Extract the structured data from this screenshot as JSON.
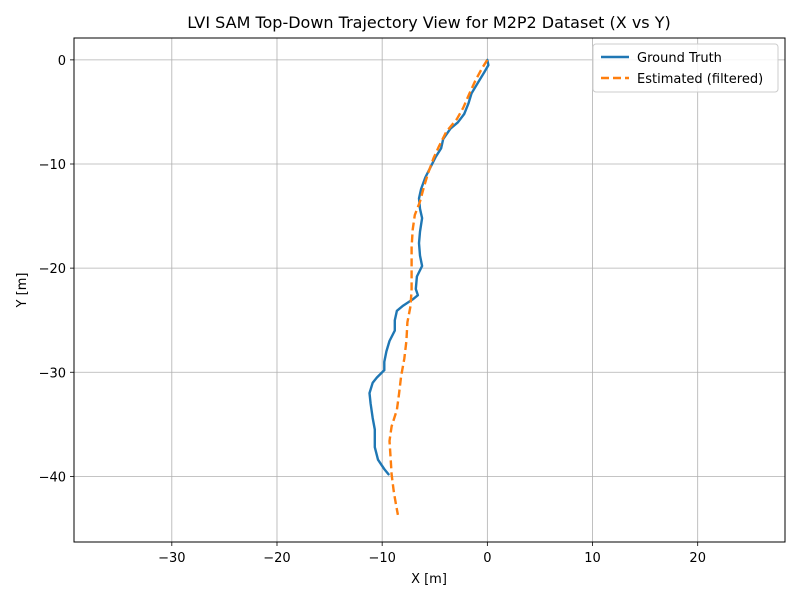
{
  "chart_data": {
    "type": "line",
    "title": "LVI SAM Top-Down Trajectory View for M2P2 Dataset (X vs Y)",
    "xlabel": "X [m]",
    "ylabel": "Y [m]",
    "xlim": [
      -39.3,
      28.3
    ],
    "ylim": [
      -46.3,
      2.1
    ],
    "xticks": [
      -30,
      -20,
      -10,
      0,
      10,
      20
    ],
    "yticks": [
      0,
      -10,
      -20,
      -30,
      -40
    ],
    "grid": true,
    "legend_position": "top-right",
    "series": [
      {
        "name": "Ground Truth",
        "color": "#1f77b4",
        "style": "solid",
        "points": [
          [
            0.0,
            0.0
          ],
          [
            0.1,
            -0.5
          ],
          [
            -0.3,
            -1.2
          ],
          [
            -0.9,
            -2.2
          ],
          [
            -1.5,
            -3.2
          ],
          [
            -1.8,
            -4.2
          ],
          [
            -2.2,
            -5.2
          ],
          [
            -2.8,
            -6.0
          ],
          [
            -3.5,
            -6.6
          ],
          [
            -4.2,
            -7.6
          ],
          [
            -4.4,
            -8.5
          ],
          [
            -4.9,
            -9.3
          ],
          [
            -5.5,
            -10.5
          ],
          [
            -5.9,
            -11.3
          ],
          [
            -6.3,
            -12.4
          ],
          [
            -6.5,
            -13.3
          ],
          [
            -6.4,
            -14.3
          ],
          [
            -6.2,
            -15.2
          ],
          [
            -6.4,
            -16.5
          ],
          [
            -6.5,
            -17.6
          ],
          [
            -6.4,
            -18.8
          ],
          [
            -6.2,
            -19.8
          ],
          [
            -6.7,
            -20.8
          ],
          [
            -6.8,
            -22.0
          ],
          [
            -6.6,
            -22.6
          ],
          [
            -7.1,
            -23.0
          ],
          [
            -8.0,
            -23.6
          ],
          [
            -8.6,
            -24.1
          ],
          [
            -8.8,
            -25.0
          ],
          [
            -8.8,
            -26.0
          ],
          [
            -9.3,
            -27.0
          ],
          [
            -9.6,
            -28.0
          ],
          [
            -9.8,
            -29.0
          ],
          [
            -9.8,
            -29.8
          ],
          [
            -10.5,
            -30.5
          ],
          [
            -10.9,
            -31.0
          ],
          [
            -11.2,
            -32.0
          ],
          [
            -11.1,
            -33.0
          ],
          [
            -10.9,
            -34.4
          ],
          [
            -10.7,
            -35.5
          ],
          [
            -10.7,
            -37.2
          ],
          [
            -10.4,
            -38.4
          ],
          [
            -9.8,
            -39.3
          ],
          [
            -9.4,
            -39.8
          ]
        ]
      },
      {
        "name": "Estimated (filtered)",
        "color": "#ff7f0e",
        "style": "dashed",
        "points": [
          [
            0.0,
            0.0
          ],
          [
            -0.5,
            -0.8
          ],
          [
            -1.1,
            -1.9
          ],
          [
            -1.6,
            -3.0
          ],
          [
            -2.3,
            -4.6
          ],
          [
            -2.9,
            -5.7
          ],
          [
            -3.9,
            -6.9
          ],
          [
            -4.6,
            -8.3
          ],
          [
            -5.1,
            -9.4
          ],
          [
            -5.6,
            -10.8
          ],
          [
            -6.0,
            -12.1
          ],
          [
            -6.4,
            -13.6
          ],
          [
            -6.9,
            -14.9
          ],
          [
            -7.1,
            -16.3
          ],
          [
            -7.2,
            -18.0
          ],
          [
            -7.2,
            -20.0
          ],
          [
            -7.2,
            -22.0
          ],
          [
            -7.3,
            -23.6
          ],
          [
            -7.6,
            -25.2
          ],
          [
            -7.7,
            -27.0
          ],
          [
            -7.9,
            -28.7
          ],
          [
            -8.2,
            -30.4
          ],
          [
            -8.4,
            -32.1
          ],
          [
            -8.6,
            -33.6
          ],
          [
            -9.1,
            -35.2
          ],
          [
            -9.3,
            -36.6
          ],
          [
            -9.2,
            -38.2
          ],
          [
            -9.1,
            -39.8
          ],
          [
            -8.9,
            -41.4
          ],
          [
            -8.7,
            -42.6
          ],
          [
            -8.5,
            -43.7
          ]
        ]
      }
    ]
  }
}
